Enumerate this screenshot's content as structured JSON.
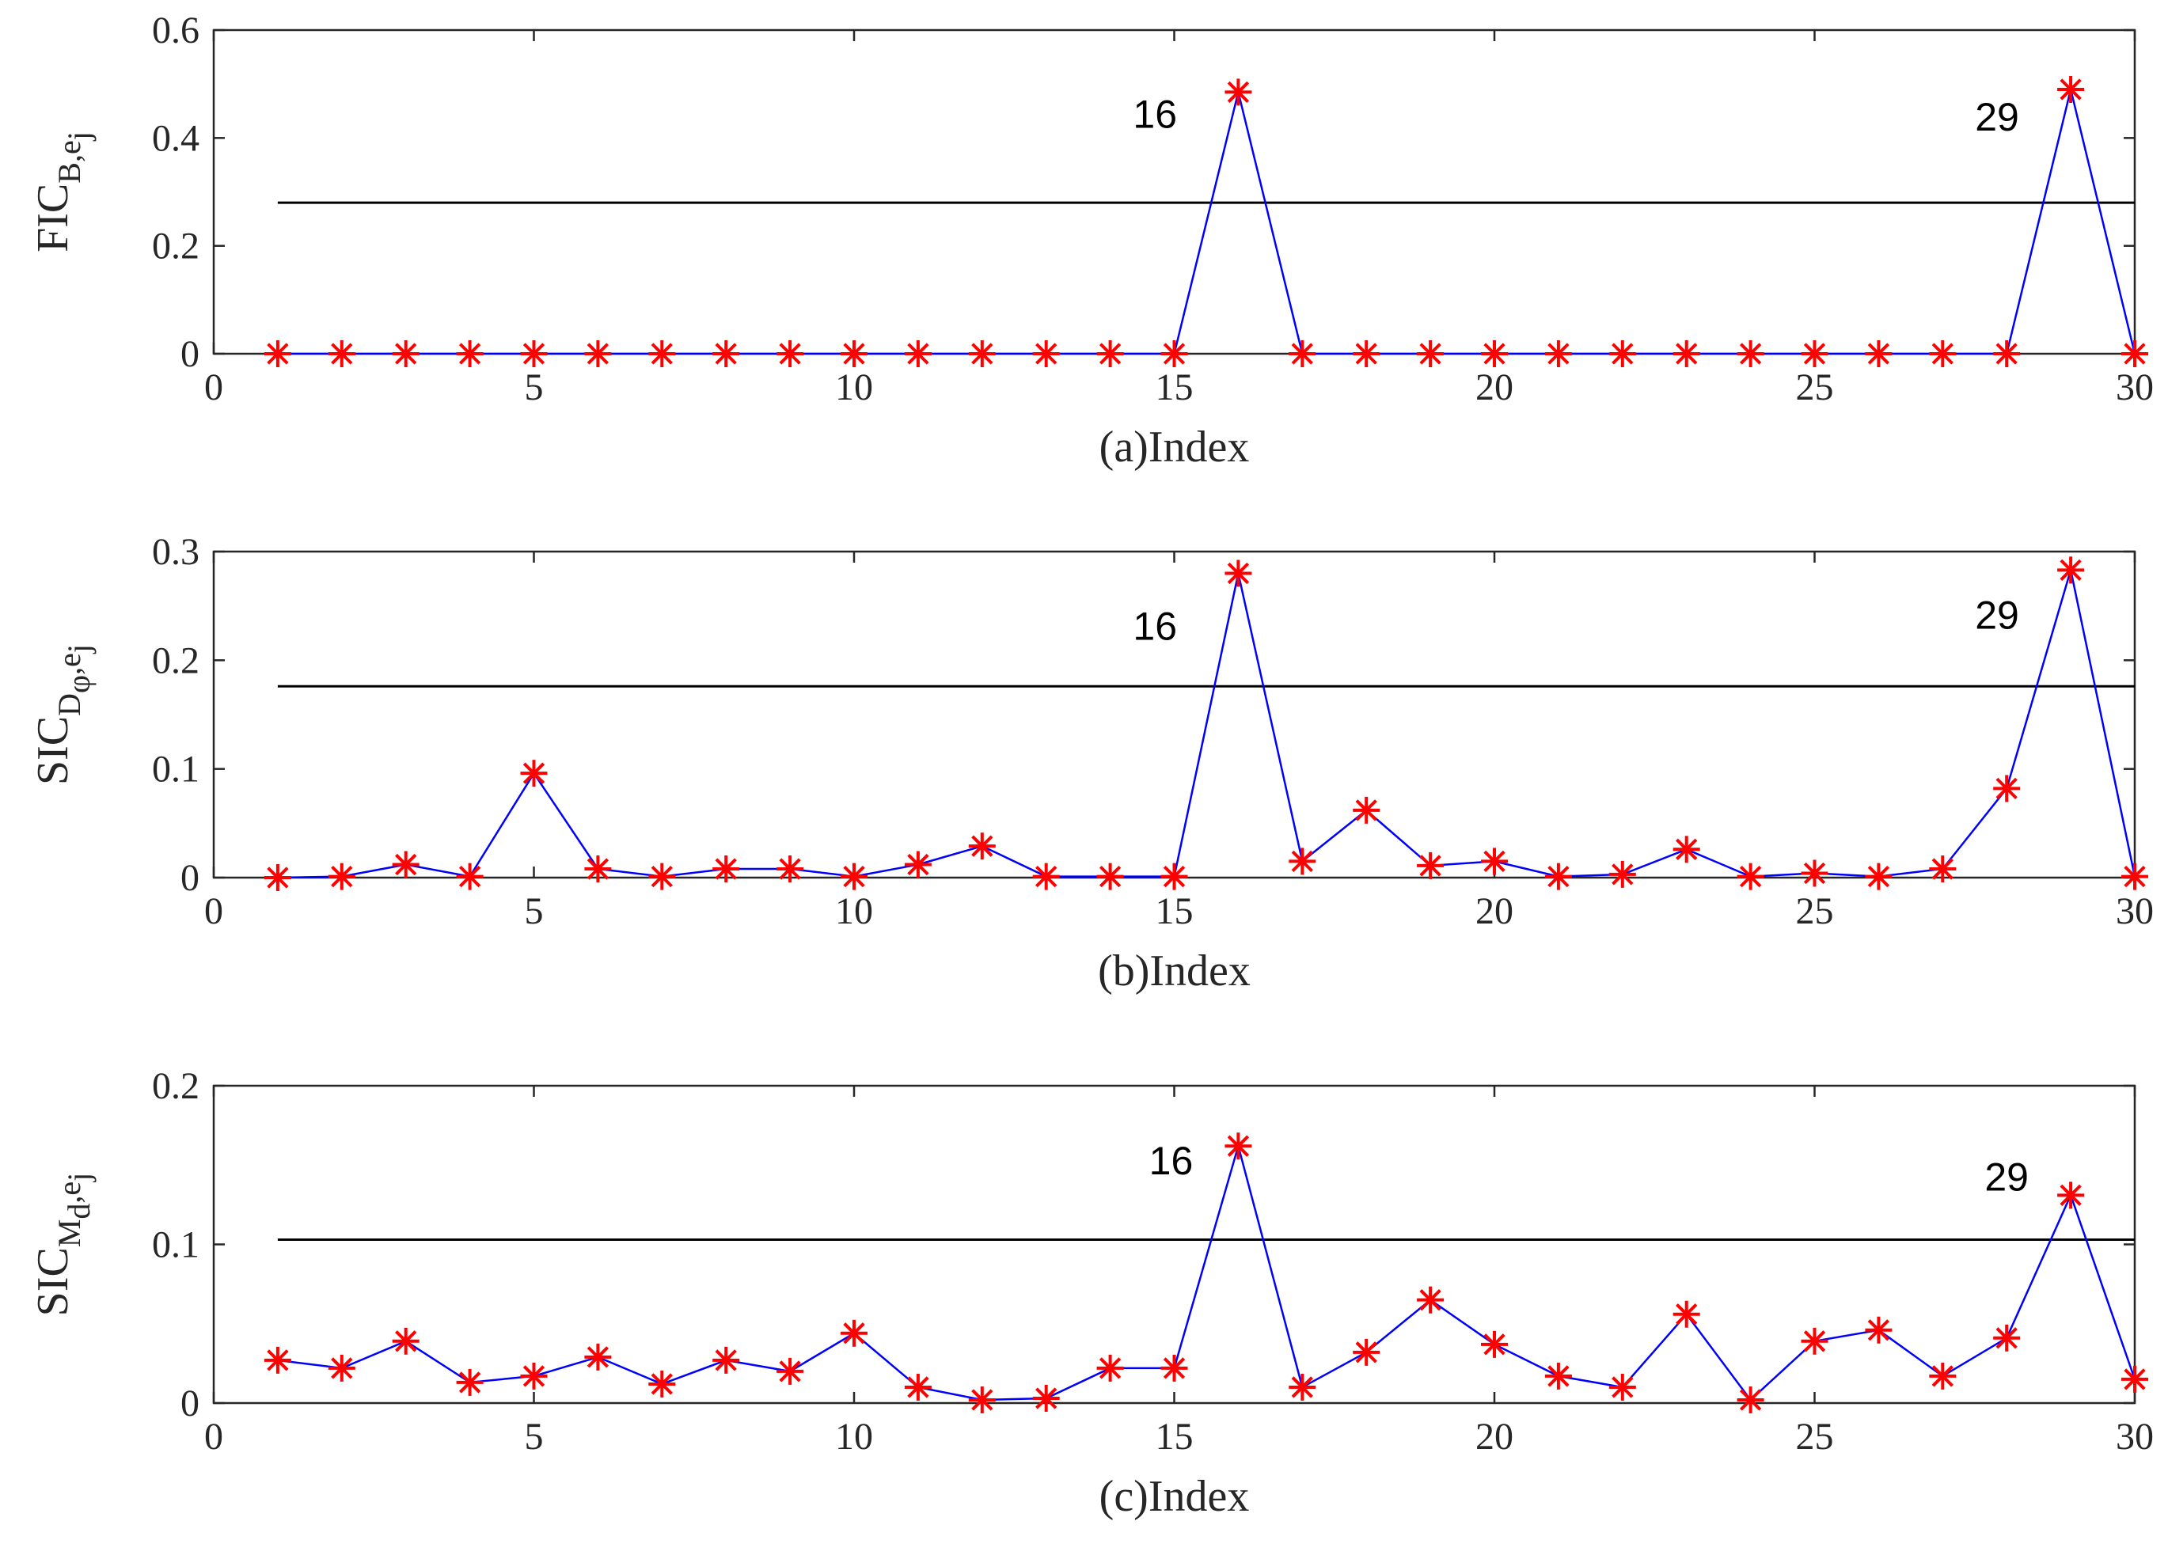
{
  "chart_data": [
    {
      "type": "line",
      "x": [
        1,
        2,
        3,
        4,
        5,
        6,
        7,
        8,
        9,
        10,
        11,
        12,
        13,
        14,
        15,
        16,
        17,
        18,
        19,
        20,
        21,
        22,
        23,
        24,
        25,
        26,
        27,
        28,
        29,
        30
      ],
      "series": [
        {
          "values": [
            0,
            0,
            0,
            0,
            0,
            0,
            0,
            0,
            0,
            0,
            0,
            0,
            0,
            0,
            0,
            0.485,
            0,
            0,
            0,
            0,
            0,
            0,
            0,
            0,
            0,
            0,
            0,
            0,
            0.49,
            0
          ]
        }
      ],
      "threshold": 0.28,
      "ylabel": "FIC",
      "ylabel_sub": "B,e",
      "ylabel_subsub": "j",
      "xlabel": "(a)Index",
      "xlim": [
        0,
        30
      ],
      "ylim": [
        0,
        0.6
      ],
      "xticks": [
        0,
        5,
        10,
        15,
        20,
        25,
        30
      ],
      "yticks": [
        0,
        0.2,
        0.4,
        0.6
      ],
      "annotations": [
        {
          "text": "16",
          "x": 14.7,
          "y": 0.445
        },
        {
          "text": "29",
          "x": 27.85,
          "y": 0.44
        }
      ]
    },
    {
      "type": "line",
      "x": [
        1,
        2,
        3,
        4,
        5,
        6,
        7,
        8,
        9,
        10,
        11,
        12,
        13,
        14,
        15,
        16,
        17,
        18,
        19,
        20,
        21,
        22,
        23,
        24,
        25,
        26,
        27,
        28,
        29,
        30
      ],
      "series": [
        {
          "values": [
            0,
            0.001,
            0.012,
            0.001,
            0.096,
            0.008,
            0.001,
            0.008,
            0.008,
            0.001,
            0.012,
            0.029,
            0.001,
            0.001,
            0.001,
            0.28,
            0.015,
            0.062,
            0.011,
            0.015,
            0.001,
            0.003,
            0.026,
            0.001,
            0.004,
            0.001,
            0.008,
            0.082,
            0.283,
            0.001
          ]
        }
      ],
      "threshold": 0.176,
      "ylabel": "SIC",
      "ylabel_sub": "D",
      "ylabel_subsub": "φ",
      "ylabel_sub2": ",e",
      "ylabel_subsub2": "j",
      "xlabel": "(b)Index",
      "xlim": [
        0,
        30
      ],
      "ylim": [
        0,
        0.3
      ],
      "xticks": [
        0,
        5,
        10,
        15,
        20,
        25,
        30
      ],
      "yticks": [
        0,
        0.1,
        0.2,
        0.3
      ],
      "annotations": [
        {
          "text": "16",
          "x": 14.7,
          "y": 0.232
        },
        {
          "text": "29",
          "x": 27.85,
          "y": 0.242
        }
      ]
    },
    {
      "type": "line",
      "x": [
        1,
        2,
        3,
        4,
        5,
        6,
        7,
        8,
        9,
        10,
        11,
        12,
        13,
        14,
        15,
        16,
        17,
        18,
        19,
        20,
        21,
        22,
        23,
        24,
        25,
        26,
        27,
        28,
        29,
        30
      ],
      "series": [
        {
          "values": [
            0.027,
            0.022,
            0.039,
            0.013,
            0.017,
            0.029,
            0.012,
            0.027,
            0.02,
            0.044,
            0.01,
            0.002,
            0.003,
            0.022,
            0.022,
            0.162,
            0.01,
            0.032,
            0.065,
            0.037,
            0.017,
            0.01,
            0.056,
            0.002,
            0.039,
            0.046,
            0.017,
            0.041,
            0.131,
            0.015
          ]
        }
      ],
      "threshold": 0.103,
      "ylabel": "SIC",
      "ylabel_sub": "M",
      "ylabel_subsub": "d",
      "ylabel_sub2": ",e",
      "ylabel_subsub2": "j",
      "xlabel": "(c)Index",
      "xlim": [
        0,
        30
      ],
      "ylim": [
        0,
        0.2
      ],
      "xticks": [
        0,
        5,
        10,
        15,
        20,
        25,
        30
      ],
      "yticks": [
        0,
        0.1,
        0.2
      ],
      "annotations": [
        {
          "text": "16",
          "x": 14.95,
          "y": 0.153
        },
        {
          "text": "29",
          "x": 28.0,
          "y": 0.143
        }
      ]
    }
  ],
  "colors": {
    "series_line": "#0000ff",
    "marker": "#ff0000",
    "threshold": "#000000",
    "axes": "#262626",
    "annotation": "#000000"
  }
}
